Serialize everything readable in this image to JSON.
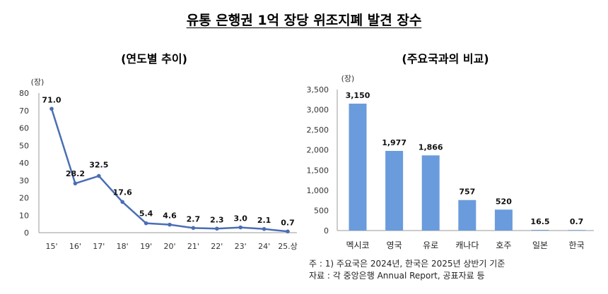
{
  "title": "유통 은행권 1억 장당 위조지폐 발견 장수",
  "colors": {
    "line": "#4a6eb5",
    "bar": "#6a9bdc"
  },
  "chart_data": [
    {
      "type": "line",
      "title": "(연도별 추이)",
      "unit": "(장)",
      "categories": [
        "15'",
        "16'",
        "17'",
        "18'",
        "19'",
        "20'",
        "21'",
        "22'",
        "23'",
        "24'",
        "25.상"
      ],
      "values": [
        71.0,
        28.2,
        32.5,
        17.6,
        5.4,
        4.6,
        2.7,
        2.3,
        3.0,
        2.1,
        0.7
      ],
      "labels": [
        "71.0",
        "28.2",
        "32.5",
        "17.6",
        "5.4",
        "4.6",
        "2.7",
        "2.3",
        "3.0",
        "2.1",
        "0.7"
      ],
      "ylim": [
        0,
        80
      ],
      "yticks": [
        0,
        10,
        20,
        30,
        40,
        50,
        60,
        70,
        80
      ],
      "ytick_labels": [
        "0",
        "10",
        "20",
        "30",
        "40",
        "50",
        "60",
        "70",
        "80"
      ],
      "grid": false
    },
    {
      "type": "bar",
      "title": "(주요국과의 비교)",
      "unit": "(장)",
      "categories": [
        "멕시코",
        "영국",
        "유로",
        "캐나다",
        "호주",
        "일본",
        "한국"
      ],
      "values": [
        3150,
        1977,
        1866,
        757,
        520,
        16.5,
        0.7
      ],
      "labels": [
        "3,150",
        "1,977",
        "1,866",
        "757",
        "520",
        "16.5",
        "0.7"
      ],
      "ylim": [
        0,
        3500
      ],
      "yticks": [
        0,
        500,
        1000,
        1500,
        2000,
        2500,
        3000,
        3500
      ],
      "ytick_labels": [
        "0",
        "500",
        "1,000",
        "1,500",
        "2,000",
        "2,500",
        "3,000",
        "3,500"
      ],
      "grid": false
    }
  ],
  "notes": {
    "line1": "주 : 1) 주요국은 2024년, 한국은 2025년 상반기 기준",
    "line2": "자료 : 각 중앙은행 Annual Report, 공표자료 등"
  }
}
